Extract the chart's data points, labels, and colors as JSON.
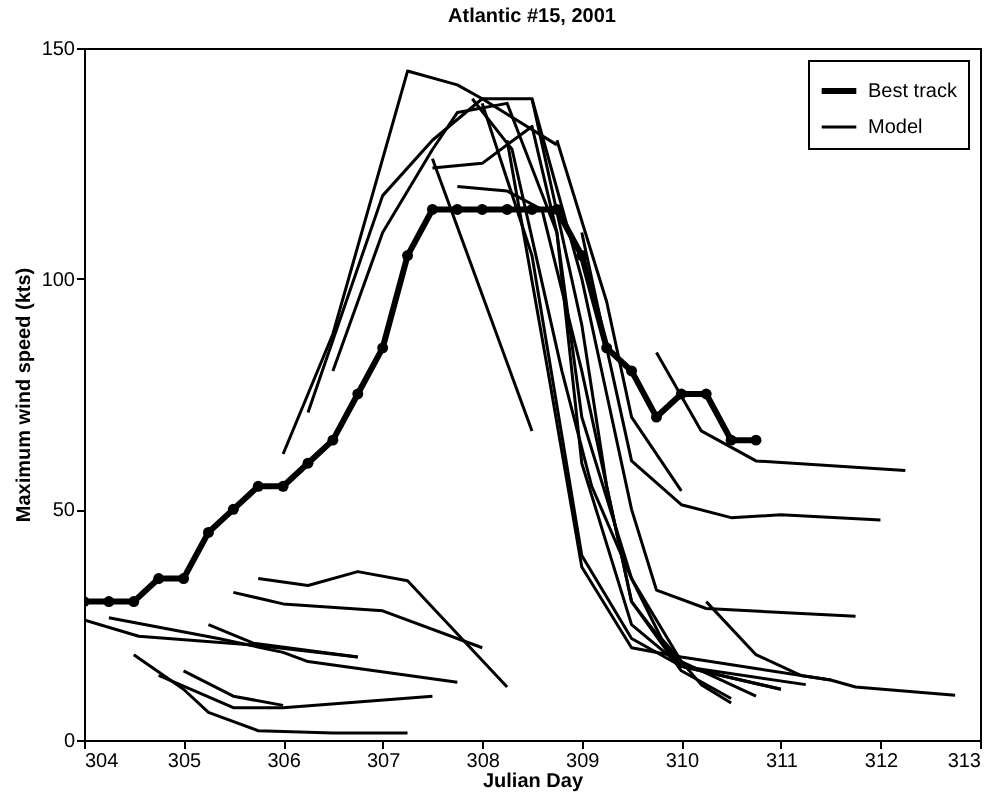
{
  "chart_data": {
    "type": "line",
    "title": "Atlantic #15, 2001",
    "xlabel": "Julian Day",
    "ylabel": "Maximum wind speed (kts)",
    "xlim": [
      304,
      313
    ],
    "xticks": [
      304,
      305,
      306,
      307,
      308,
      309,
      310,
      311,
      312,
      313
    ],
    "ylim": [
      0,
      150
    ],
    "yticks": [
      0,
      50,
      100,
      150
    ],
    "grid": false,
    "legend": "top right",
    "series": [
      {
        "name": "Best track",
        "color": "#000000",
        "marker": "circle",
        "x": [
          304,
          304.25,
          304.5,
          304.75,
          305,
          305.25,
          305.5,
          305.75,
          306,
          306.25,
          306.5,
          306.75,
          307,
          307.25,
          307.5,
          307.75,
          308,
          308.25,
          308.5,
          308.75,
          309,
          309.25,
          309.5,
          309.75,
          310,
          310.25,
          310.5,
          310.75
        ],
        "values": [
          30,
          30,
          30,
          35,
          35,
          45,
          50,
          55,
          55,
          60,
          65,
          75,
          85,
          105,
          115,
          115,
          115,
          115,
          115,
          115,
          105,
          85,
          80,
          70,
          75,
          75,
          65,
          65
        ]
      },
      {
        "name": "Model",
        "color": "#000000",
        "x": [
          304,
          304.55,
          305.75,
          306.75
        ],
        "values": [
          26,
          22.5,
          20.5,
          18
        ]
      },
      {
        "color": "#000000",
        "x": [
          304.25,
          305.35,
          306,
          306.25,
          307.75
        ],
        "values": [
          26.5,
          22,
          19,
          17,
          12.5
        ]
      },
      {
        "color": "#000000",
        "x": [
          305.25,
          305.7,
          306.75
        ],
        "values": [
          25,
          21,
          18
        ]
      },
      {
        "color": "#000000",
        "x": [
          305.5,
          306,
          307,
          308
        ],
        "values": [
          32,
          29.5,
          28,
          20
        ]
      },
      {
        "color": "#000000",
        "x": [
          305.75,
          306.25,
          306.75,
          307.25,
          308.25
        ],
        "values": [
          35,
          33.5,
          36.5,
          34.5,
          11.5
        ]
      },
      {
        "color": "#000000",
        "x": [
          304.5,
          305,
          305.25,
          305.75,
          306.5,
          307.25
        ],
        "values": [
          18.5,
          11,
          6,
          2,
          1.5,
          1.5
        ]
      },
      {
        "color": "#000000",
        "x": [
          304.75,
          305.5,
          306,
          307.5
        ],
        "values": [
          14,
          7,
          7,
          9.5
        ]
      },
      {
        "color": "#000000",
        "x": [
          305,
          305.5,
          306
        ],
        "values": [
          15,
          9.5,
          7.5
        ]
      },
      {
        "color": "#000000",
        "x": [
          306,
          306.5,
          307.25,
          307.75,
          308,
          308.75
        ],
        "values": [
          62,
          88,
          145,
          142,
          139,
          129
        ]
      },
      {
        "color": "#000000",
        "x": [
          306.25,
          307,
          307.5,
          308,
          308.5,
          309,
          309.25,
          309.5,
          310,
          310.5
        ],
        "values": [
          71,
          118,
          130,
          139,
          139,
          90,
          55,
          30,
          15,
          9
        ]
      },
      {
        "color": "#000000",
        "x": [
          306.5,
          307,
          307.5,
          307.75,
          308.25,
          308.75,
          309,
          309.5,
          310,
          310.75
        ],
        "values": [
          80,
          110,
          128,
          136,
          138,
          110,
          70,
          35,
          17,
          9.5
        ]
      },
      {
        "color": "#000000",
        "x": [
          307.5,
          308.5
        ],
        "values": [
          126,
          67
        ]
      },
      {
        "color": "#000000",
        "x": [
          307.75,
          308.25,
          308.6,
          309,
          309.5,
          310,
          311
        ],
        "values": [
          120,
          119,
          115,
          80,
          30,
          16,
          11
        ]
      },
      {
        "color": "#000000",
        "x": [
          307.5,
          308,
          308.5,
          308.75,
          309,
          309.5,
          310,
          311.25
        ],
        "values": [
          124,
          125,
          133,
          110,
          60,
          25,
          16,
          12
        ]
      },
      {
        "color": "#000000",
        "x": [
          308,
          308.5,
          309,
          309.5,
          310,
          311
        ],
        "values": [
          138,
          105,
          40,
          22,
          16,
          11
        ]
      },
      {
        "color": "#000000",
        "x": [
          308.5,
          309,
          309.25,
          309.5,
          309.75,
          310.25,
          311.75
        ],
        "values": [
          139,
          100,
          75,
          50,
          32.5,
          28.5,
          26.8
        ]
      },
      {
        "color": "#000000",
        "x": [
          308.75,
          309.25,
          309.5,
          310
        ],
        "values": [
          130,
          95,
          70,
          54
        ]
      },
      {
        "color": "#000000",
        "x": [
          309,
          309.25,
          309.5,
          310,
          310.5,
          311,
          312
        ],
        "values": [
          110,
          85,
          60.5,
          51,
          48.2,
          48.8,
          47.7
        ]
      },
      {
        "color": "#000000",
        "x": [
          309.75,
          310.2,
          310.75,
          312.25
        ],
        "values": [
          84,
          67,
          60.5,
          58.4
        ]
      },
      {
        "color": "#000000",
        "x": [
          310.25,
          310.75,
          311.2,
          311.5,
          311.75,
          312.75
        ],
        "values": [
          30,
          18.5,
          14,
          13,
          11.5,
          9.7
        ]
      },
      {
        "color": "#000000",
        "x": [
          308.25,
          308.66,
          309,
          309.5,
          310,
          311.5
        ],
        "values": [
          130,
          80,
          37.5,
          20,
          18,
          13
        ]
      },
      {
        "color": "#000000",
        "x": [
          307.9,
          308.3,
          308.8,
          309.1,
          309.5,
          309.8,
          310.2,
          310.5
        ],
        "values": [
          139,
          128,
          80,
          55,
          35,
          22,
          12,
          8
        ]
      }
    ]
  }
}
